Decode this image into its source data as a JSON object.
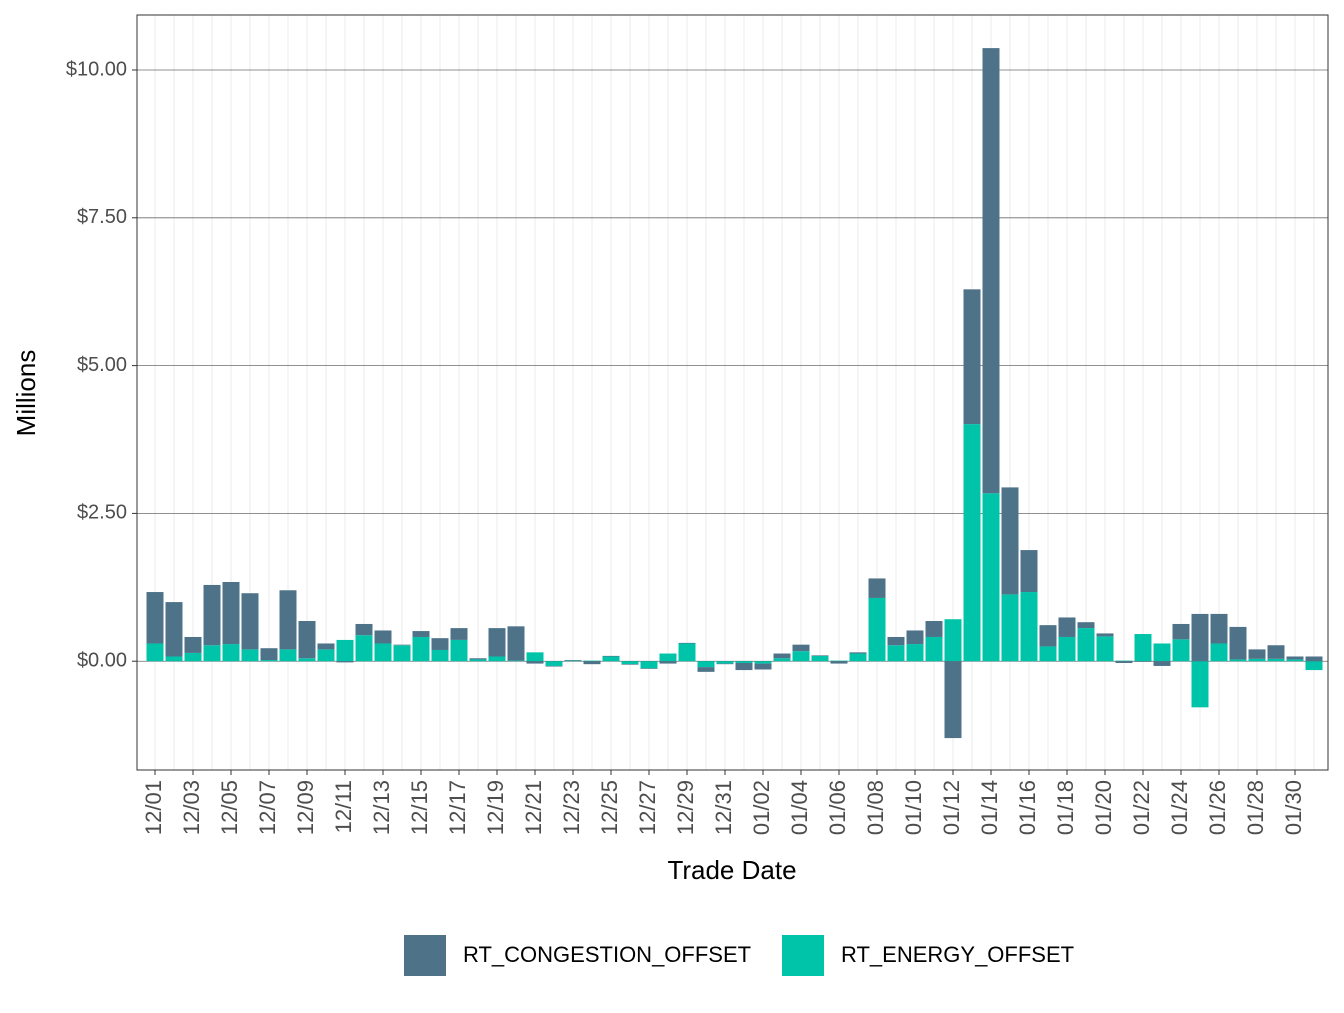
{
  "chart_data": {
    "type": "bar",
    "stacked": true,
    "x_label": "Trade Date",
    "y_label": "Millions",
    "categories": [
      "12/01",
      null,
      "12/03",
      null,
      "12/05",
      null,
      "12/07",
      null,
      "12/09",
      null,
      "12/11",
      null,
      "12/13",
      null,
      "12/15",
      null,
      "12/17",
      null,
      "12/19",
      null,
      "12/21",
      null,
      "12/23",
      null,
      "12/25",
      null,
      "12/27",
      null,
      "12/29",
      null,
      "12/31",
      null,
      "01/02",
      null,
      "01/04",
      null,
      "01/06",
      null,
      "01/08",
      null,
      "01/10",
      null,
      "01/12",
      null,
      "01/14",
      null,
      "01/16",
      null,
      "01/18",
      null,
      "01/20",
      null,
      "01/22",
      null,
      "01/24",
      null,
      "01/26",
      null,
      "01/28",
      null,
      "01/30",
      null
    ],
    "series": [
      {
        "name": "RT_CONGESTION_OFFSET",
        "color": "#4e7389",
        "values": [
          0.87,
          0.92,
          0.27,
          1.02,
          1.05,
          0.95,
          0.2,
          1.0,
          0.63,
          0.1,
          -0.02,
          0.19,
          0.22,
          0.01,
          0.1,
          0.2,
          0.2,
          0.02,
          0.48,
          0.58,
          -0.04,
          -0.01,
          0.01,
          -0.05,
          0.01,
          -0.01,
          -0.01,
          -0.04,
          0.01,
          -0.08,
          -0.01,
          -0.12,
          -0.1,
          0.08,
          0.11,
          0.01,
          -0.04,
          0.02,
          0.33,
          0.14,
          0.23,
          0.27,
          -1.3,
          2.28,
          7.53,
          1.81,
          0.71,
          0.36,
          0.33,
          0.1,
          0.05,
          -0.03,
          -0.01,
          -0.08,
          0.26,
          0.8,
          0.5,
          0.55,
          0.16,
          0.23,
          0.05,
          0.08
        ]
      },
      {
        "name": "RT_ENERGY_OFFSET",
        "color": "#00c4aa",
        "values": [
          0.3,
          0.08,
          0.14,
          0.27,
          0.29,
          0.2,
          0.02,
          0.2,
          0.05,
          0.2,
          0.36,
          0.44,
          0.3,
          0.27,
          0.41,
          0.19,
          0.36,
          0.03,
          0.08,
          0.01,
          0.15,
          -0.08,
          0.01,
          0.01,
          0.08,
          -0.05,
          -0.12,
          0.13,
          0.3,
          -0.1,
          -0.04,
          -0.03,
          -0.04,
          0.05,
          0.17,
          0.09,
          0.01,
          0.13,
          1.07,
          0.27,
          0.29,
          0.41,
          0.71,
          4.01,
          2.84,
          1.13,
          1.17,
          0.25,
          0.41,
          0.56,
          0.42,
          0.01,
          0.46,
          0.3,
          0.37,
          -0.78,
          0.3,
          0.03,
          0.04,
          0.04,
          0.03,
          -0.15
        ]
      }
    ],
    "ylim": [
      -1.84,
      10.93
    ],
    "yticks": [
      {
        "value": 0,
        "label": "$0.00"
      },
      {
        "value": 2.5,
        "label": "$2.50"
      },
      {
        "value": 5,
        "label": "$5.00"
      },
      {
        "value": 7.5,
        "label": "$7.50"
      },
      {
        "value": 10,
        "label": "$10.00"
      }
    ],
    "grid": true,
    "legend": "bottom"
  }
}
